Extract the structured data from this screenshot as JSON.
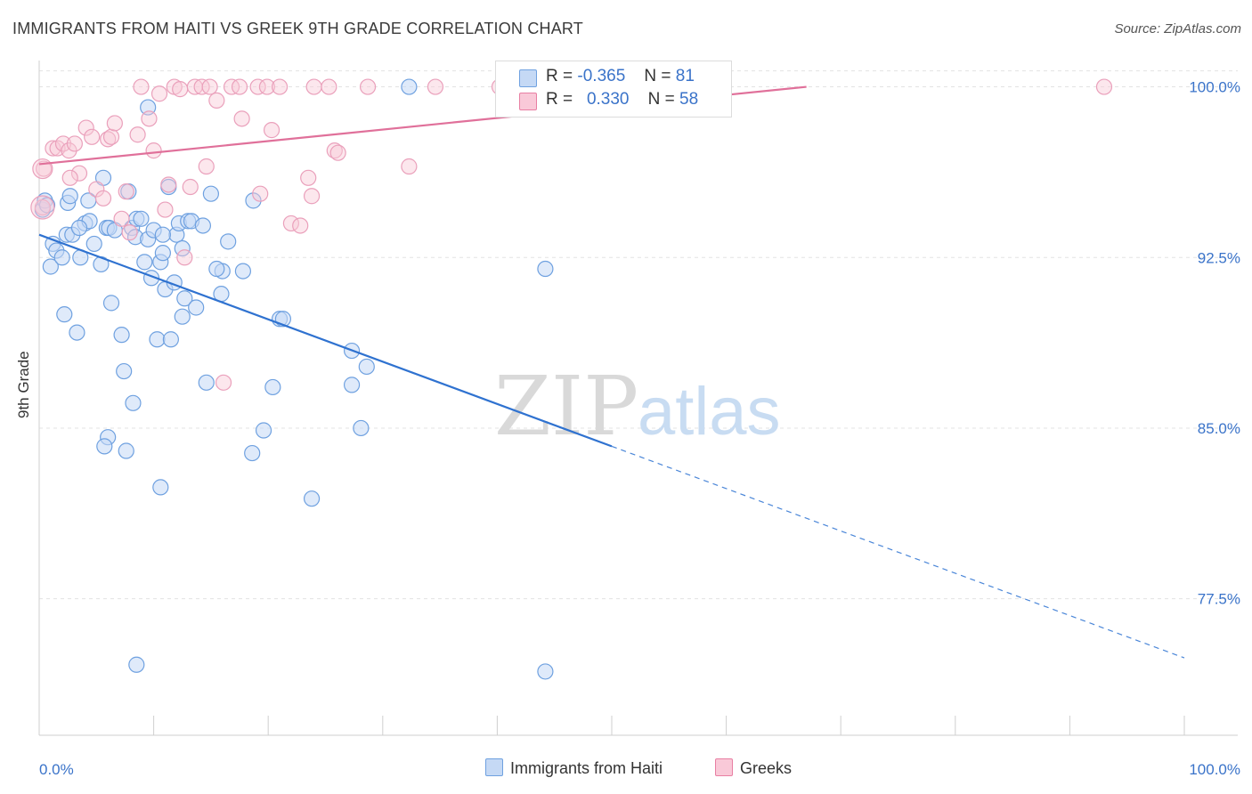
{
  "title": "IMMIGRANTS FROM HAITI VS GREEK 9TH GRADE CORRELATION CHART",
  "source": "Source: ZipAtlas.com",
  "watermark": {
    "zip": "ZIP",
    "atlas": "atlas"
  },
  "legend": {
    "r_label": "R =",
    "n_label": "N =",
    "rows": [
      {
        "r": "-0.365",
        "n": "81",
        "color": "#6fa1e0",
        "fill": "#c5d9f5"
      },
      {
        "r": "0.330",
        "n": "58",
        "color": "#e87fa3",
        "fill": "#f9c9d8"
      }
    ]
  },
  "bottom_legend": [
    {
      "label": "Immigrants from Haiti",
      "color": "#6fa1e0",
      "fill": "#c5d9f5"
    },
    {
      "label": "Greeks",
      "color": "#e87fa3",
      "fill": "#f9c9d8"
    }
  ],
  "chart_data": {
    "type": "scatter",
    "title": "IMMIGRANTS FROM HAITI VS GREEK 9TH GRADE CORRELATION CHART",
    "xlabel": "",
    "ylabel": "9th Grade",
    "xlim": [
      0,
      100
    ],
    "ylim": [
      71.5,
      101
    ],
    "x_tick_labels": [
      "0.0%",
      "100.0%"
    ],
    "y_ticks": [
      100.0,
      92.5,
      85.0,
      77.5
    ],
    "y_tick_labels": [
      "100.0%",
      "92.5%",
      "85.0%",
      "77.5%"
    ],
    "grid": true,
    "legend_position": "top-center",
    "series": [
      {
        "name": "Immigrants from Haiti",
        "color": "#3a78d4",
        "points": [
          [
            0.3,
            94.6
          ],
          [
            0.5,
            95.0
          ],
          [
            0.7,
            94.8
          ],
          [
            1.0,
            92.1
          ],
          [
            1.2,
            93.1
          ],
          [
            1.5,
            92.8
          ],
          [
            2.2,
            90.0
          ],
          [
            2.4,
            93.5
          ],
          [
            2.5,
            94.9
          ],
          [
            2.7,
            95.2
          ],
          [
            2.9,
            93.5
          ],
          [
            3.3,
            89.2
          ],
          [
            3.6,
            92.5
          ],
          [
            4.0,
            94.0
          ],
          [
            4.3,
            95.0
          ],
          [
            4.4,
            94.1
          ],
          [
            4.8,
            93.1
          ],
          [
            5.4,
            92.2
          ],
          [
            5.6,
            96.0
          ],
          [
            5.9,
            93.8
          ],
          [
            6.1,
            93.8
          ],
          [
            6.3,
            90.5
          ],
          [
            6.6,
            93.7
          ],
          [
            7.2,
            89.1
          ],
          [
            7.4,
            87.5
          ],
          [
            7.8,
            95.4
          ],
          [
            8.1,
            93.8
          ],
          [
            8.2,
            86.1
          ],
          [
            8.4,
            93.4
          ],
          [
            8.5,
            94.2
          ],
          [
            8.9,
            94.2
          ],
          [
            9.2,
            92.3
          ],
          [
            9.5,
            93.3
          ],
          [
            9.8,
            91.6
          ],
          [
            10.0,
            93.7
          ],
          [
            10.3,
            88.9
          ],
          [
            10.6,
            92.3
          ],
          [
            10.8,
            92.7
          ],
          [
            11.0,
            91.1
          ],
          [
            11.3,
            95.6
          ],
          [
            11.5,
            88.9
          ],
          [
            11.8,
            91.4
          ],
          [
            12.0,
            93.5
          ],
          [
            12.2,
            94.0
          ],
          [
            12.5,
            92.9
          ],
          [
            12.7,
            90.7
          ],
          [
            13.0,
            94.1
          ],
          [
            13.3,
            94.1
          ],
          [
            13.7,
            90.3
          ],
          [
            14.3,
            93.9
          ],
          [
            14.6,
            87.0
          ],
          [
            15.0,
            95.3
          ],
          [
            15.9,
            90.9
          ],
          [
            16.0,
            91.9
          ],
          [
            16.5,
            93.2
          ],
          [
            17.8,
            91.9
          ],
          [
            18.7,
            95.0
          ],
          [
            9.5,
            99.1
          ],
          [
            6.0,
            84.6
          ],
          [
            5.7,
            84.2
          ],
          [
            10.6,
            82.4
          ],
          [
            12.5,
            89.9
          ],
          [
            18.6,
            83.9
          ],
          [
            19.6,
            84.9
          ],
          [
            20.4,
            86.8
          ],
          [
            21.0,
            89.8
          ],
          [
            21.3,
            89.8
          ],
          [
            23.8,
            81.9
          ],
          [
            27.3,
            86.9
          ],
          [
            27.3,
            88.4
          ],
          [
            28.1,
            85.0
          ],
          [
            28.6,
            87.7
          ],
          [
            32.3,
            100.0
          ],
          [
            44.2,
            74.3
          ],
          [
            8.5,
            74.6
          ],
          [
            44.2,
            92.0
          ],
          [
            7.6,
            84.0
          ],
          [
            10.8,
            93.5
          ],
          [
            15.5,
            92.0
          ],
          [
            3.5,
            93.8
          ],
          [
            2.0,
            92.5
          ]
        ],
        "trend": {
          "x": [
            0,
            50
          ],
          "y": [
            93.5,
            84.2
          ],
          "dashed_to": [
            100,
            74.9
          ]
        }
      },
      {
        "name": "Greeks",
        "color": "#e0709a",
        "points": [
          [
            0.3,
            94.7
          ],
          [
            0.4,
            96.4
          ],
          [
            1.2,
            97.3
          ],
          [
            1.6,
            97.3
          ],
          [
            2.1,
            97.5
          ],
          [
            2.6,
            97.2
          ],
          [
            3.1,
            97.5
          ],
          [
            3.5,
            96.2
          ],
          [
            4.1,
            98.2
          ],
          [
            4.6,
            97.8
          ],
          [
            5.0,
            95.5
          ],
          [
            5.6,
            95.1
          ],
          [
            6.0,
            97.7
          ],
          [
            6.3,
            97.8
          ],
          [
            6.6,
            98.4
          ],
          [
            7.2,
            94.2
          ],
          [
            7.6,
            95.4
          ],
          [
            7.9,
            93.6
          ],
          [
            8.6,
            97.9
          ],
          [
            8.9,
            100.0
          ],
          [
            9.6,
            98.6
          ],
          [
            10.0,
            97.2
          ],
          [
            10.5,
            99.7
          ],
          [
            11.0,
            94.6
          ],
          [
            11.3,
            95.7
          ],
          [
            11.8,
            100.0
          ],
          [
            12.3,
            99.9
          ],
          [
            12.7,
            92.5
          ],
          [
            13.2,
            95.6
          ],
          [
            13.6,
            100.0
          ],
          [
            14.2,
            100.0
          ],
          [
            14.6,
            96.5
          ],
          [
            15.5,
            99.4
          ],
          [
            16.1,
            87.0
          ],
          [
            16.8,
            100.0
          ],
          [
            17.5,
            100.0
          ],
          [
            17.7,
            98.6
          ],
          [
            19.1,
            100.0
          ],
          [
            19.9,
            100.0
          ],
          [
            20.3,
            98.1
          ],
          [
            21.0,
            100.0
          ],
          [
            22.0,
            94.0
          ],
          [
            22.8,
            93.9
          ],
          [
            23.5,
            96.0
          ],
          [
            23.8,
            95.2
          ],
          [
            24.0,
            100.0
          ],
          [
            25.3,
            100.0
          ],
          [
            25.8,
            97.2
          ],
          [
            26.1,
            97.1
          ],
          [
            28.7,
            100.0
          ],
          [
            32.3,
            96.5
          ],
          [
            34.6,
            100.0
          ],
          [
            40.2,
            100.0
          ],
          [
            56.9,
            100.0
          ],
          [
            93.0,
            100.0
          ],
          [
            19.3,
            95.3
          ],
          [
            2.7,
            96.0
          ],
          [
            14.9,
            100.0
          ]
        ],
        "trend": {
          "x": [
            0,
            67
          ],
          "y": [
            96.6,
            100.0
          ]
        }
      }
    ]
  }
}
